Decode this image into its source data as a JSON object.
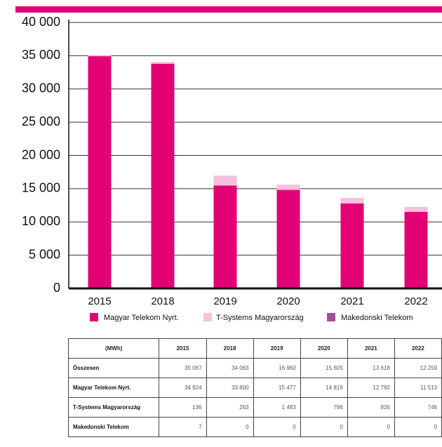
{
  "chart_data": {
    "type": "stacked_bar",
    "categories": [
      "2015",
      "2018",
      "2019",
      "2020",
      "2021",
      "2022"
    ],
    "series": [
      {
        "name": "Magyar Telekom Nyrt.",
        "color": "#e20074",
        "values": [
          34924,
          33800,
          15477,
          14819,
          12792,
          11513
        ]
      },
      {
        "name": "T-Systems Magyarország",
        "color": "#f5c1dc",
        "values": [
          136,
          263,
          1483,
          786,
          826,
          746
        ]
      },
      {
        "name": "Makedonski Telekom",
        "color": "#a0509a",
        "values": [
          7,
          0,
          0,
          0,
          0,
          0
        ]
      }
    ],
    "ylim": [
      0,
      40000
    ],
    "yticks": [
      0,
      {
        "value": 5000,
        "label": "5 000"
      },
      {
        "value": 10000,
        "label": "10 000"
      },
      {
        "value": 15000,
        "label": "15 000"
      },
      {
        "value": 20000,
        "label": "20 000"
      },
      {
        "value": 25000,
        "label": "25 000"
      },
      {
        "value": 30000,
        "label": "30 000"
      },
      {
        "value": 35000,
        "label": "35 000"
      },
      {
        "value": 40000,
        "label": "40 000"
      }
    ],
    "grid": true,
    "legend": "bottom"
  },
  "table": {
    "header": [
      "(MWh)",
      "2015",
      "2018",
      "2019",
      "2020",
      "2021",
      "2022"
    ],
    "rows": [
      [
        "Összesen",
        "35 067",
        "34 063",
        "16 960",
        "15 605",
        "13 618",
        "12 259"
      ],
      [
        "Magyar Telekom Nyrt.",
        "34 924",
        "33 800",
        "15 477",
        "14 819",
        "12 792",
        "11 513"
      ],
      [
        "T-Systems Magyarország",
        "136",
        "263",
        "1 483",
        "786",
        "826",
        "746"
      ],
      [
        "Makedonski Telekom",
        "7",
        "0",
        "0",
        "0",
        "0",
        "0"
      ]
    ]
  }
}
